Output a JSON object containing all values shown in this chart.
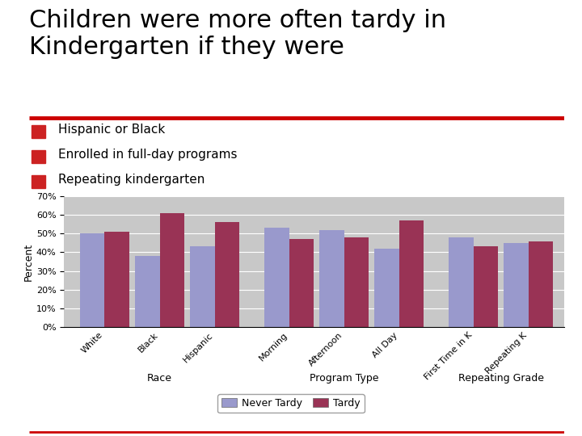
{
  "title_line1": "Children were more often tardy in",
  "title_line2": "Kindergarten if they were",
  "bullets": [
    "Hispanic or Black",
    "Enrolled in full-day programs",
    "Repeating kindergarten"
  ],
  "groups": [
    {
      "label": "Race",
      "categories": [
        "White",
        "Black",
        "Hispanic"
      ],
      "never_tardy": [
        50,
        38,
        43
      ],
      "tardy": [
        51,
        61,
        56
      ]
    },
    {
      "label": "Program Type",
      "categories": [
        "Morning",
        "Afternoon",
        "All Day"
      ],
      "never_tardy": [
        53,
        52,
        42
      ],
      "tardy": [
        47,
        48,
        57
      ]
    },
    {
      "label": "Repeating Grade",
      "categories": [
        "First Time in K",
        "Repeating K"
      ],
      "never_tardy": [
        48,
        45
      ],
      "tardy": [
        43,
        46
      ]
    }
  ],
  "ylabel": "Percent",
  "ylim": [
    0,
    70
  ],
  "yticks": [
    0,
    10,
    20,
    30,
    40,
    50,
    60,
    70
  ],
  "color_never_tardy": "#9999CC",
  "color_tardy": "#993355",
  "plot_bg_color": "#C8C8C8",
  "bar_width": 0.35,
  "legend_labels": [
    "Never Tardy",
    "Tardy"
  ],
  "title_fontsize": 22,
  "bullet_fontsize": 11,
  "axis_fontsize": 8,
  "label_fontsize": 9,
  "group_label_fontsize": 9,
  "red_rule_color": "#CC0000",
  "bullet_marker_color": "#CC2222",
  "bg_color": "#FFFFFF"
}
